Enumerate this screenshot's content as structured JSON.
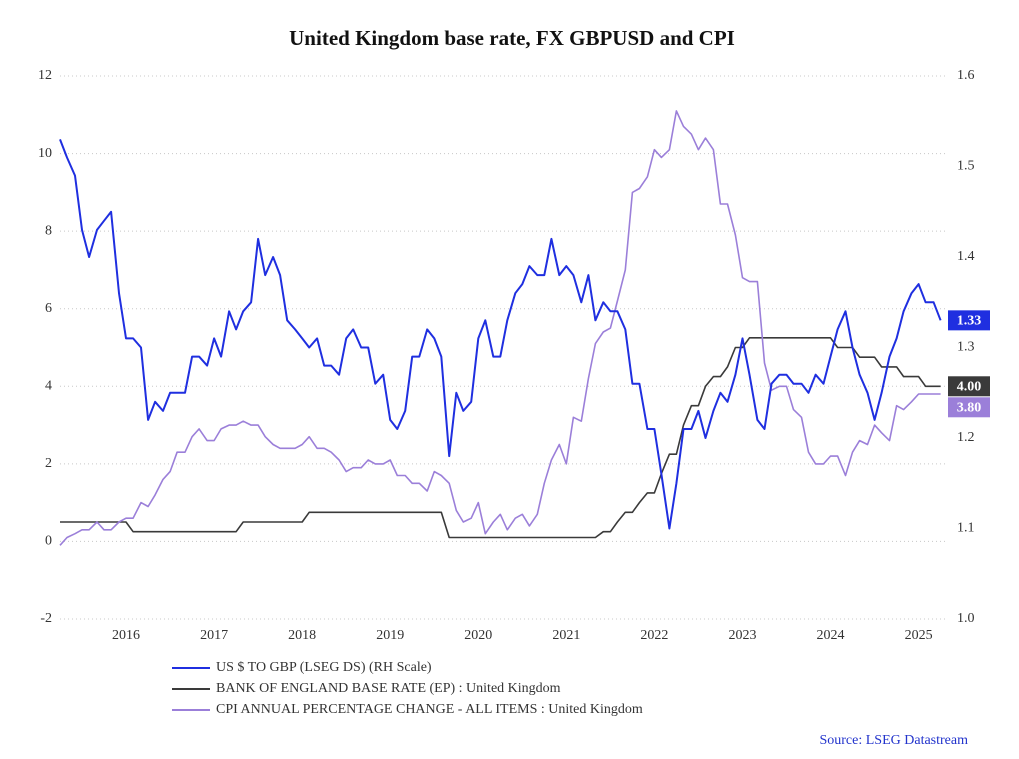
{
  "chart_data": {
    "type": "line",
    "title": "United Kingdom base rate, FX GBPUSD and CPI",
    "source": "Source: LSEG Datastream",
    "x": [
      2015.75,
      2015.83,
      2015.92,
      2016.0,
      2016.08,
      2016.17,
      2016.25,
      2016.33,
      2016.42,
      2016.5,
      2016.58,
      2016.67,
      2016.75,
      2016.83,
      2016.92,
      2017.0,
      2017.08,
      2017.17,
      2017.25,
      2017.33,
      2017.42,
      2017.5,
      2017.58,
      2017.67,
      2017.75,
      2017.83,
      2017.92,
      2018.0,
      2018.08,
      2018.17,
      2018.25,
      2018.33,
      2018.42,
      2018.5,
      2018.58,
      2018.67,
      2018.75,
      2018.83,
      2018.92,
      2019.0,
      2019.08,
      2019.17,
      2019.25,
      2019.33,
      2019.42,
      2019.5,
      2019.58,
      2019.67,
      2019.75,
      2019.83,
      2019.92,
      2020.0,
      2020.08,
      2020.17,
      2020.25,
      2020.33,
      2020.42,
      2020.5,
      2020.58,
      2020.67,
      2020.75,
      2020.83,
      2020.92,
      2021.0,
      2021.08,
      2021.17,
      2021.25,
      2021.33,
      2021.42,
      2021.5,
      2021.58,
      2021.67,
      2021.75,
      2021.83,
      2021.92,
      2022.0,
      2022.08,
      2022.17,
      2022.25,
      2022.33,
      2022.42,
      2022.5,
      2022.58,
      2022.67,
      2022.75,
      2022.83,
      2022.92,
      2023.0,
      2023.08,
      2023.17,
      2023.25,
      2023.33,
      2023.42,
      2023.5,
      2023.58,
      2023.67,
      2023.75,
      2023.83,
      2023.92,
      2024.0,
      2024.08,
      2024.17,
      2024.25,
      2024.33,
      2024.42,
      2024.5,
      2024.58,
      2024.67,
      2024.75,
      2024.83,
      2024.92,
      2025.0,
      2025.08,
      2025.17,
      2025.25,
      2025.33,
      2025.42,
      2025.5,
      2025.58,
      2025.67,
      2025.75
    ],
    "xlim": [
      2015.75,
      2025.8
    ],
    "xticks": [
      {
        "value": 2016.5,
        "label": "2016"
      },
      {
        "value": 2017.5,
        "label": "2017"
      },
      {
        "value": 2018.5,
        "label": "2018"
      },
      {
        "value": 2019.5,
        "label": "2019"
      },
      {
        "value": 2020.5,
        "label": "2020"
      },
      {
        "value": 2021.5,
        "label": "2021"
      },
      {
        "value": 2022.5,
        "label": "2022"
      },
      {
        "value": 2023.5,
        "label": "2023"
      },
      {
        "value": 2024.5,
        "label": "2024"
      },
      {
        "value": 2025.5,
        "label": "2025"
      }
    ],
    "ylim": [
      -2,
      12
    ],
    "yticks": [
      -2,
      0,
      2,
      4,
      6,
      8,
      10,
      12
    ],
    "y2lim": [
      1.0,
      1.6
    ],
    "y2ticks": [
      {
        "value": 1.0,
        "label": "1.0"
      },
      1.1,
      1.2,
      1.3,
      1.4,
      1.5,
      1.6
    ],
    "grid": true,
    "series": [
      {
        "name": "US $ TO GBP (LSEG DS) (RH Scale)",
        "color": "#1f2fe0",
        "axis": "y2",
        "end_label": "1.33",
        "values": [
          1.53,
          1.51,
          1.49,
          1.43,
          1.4,
          1.43,
          1.44,
          1.45,
          1.36,
          1.31,
          1.31,
          1.3,
          1.22,
          1.24,
          1.23,
          1.25,
          1.25,
          1.25,
          1.29,
          1.29,
          1.28,
          1.31,
          1.29,
          1.34,
          1.32,
          1.34,
          1.35,
          1.42,
          1.38,
          1.4,
          1.38,
          1.33,
          1.32,
          1.31,
          1.3,
          1.31,
          1.28,
          1.28,
          1.27,
          1.31,
          1.32,
          1.3,
          1.3,
          1.26,
          1.27,
          1.22,
          1.21,
          1.23,
          1.29,
          1.29,
          1.32,
          1.31,
          1.29,
          1.18,
          1.25,
          1.23,
          1.24,
          1.31,
          1.33,
          1.29,
          1.29,
          1.33,
          1.36,
          1.37,
          1.39,
          1.38,
          1.38,
          1.42,
          1.38,
          1.39,
          1.38,
          1.35,
          1.38,
          1.33,
          1.35,
          1.34,
          1.34,
          1.32,
          1.26,
          1.26,
          1.21,
          1.21,
          1.16,
          1.1,
          1.15,
          1.21,
          1.21,
          1.23,
          1.2,
          1.23,
          1.25,
          1.24,
          1.27,
          1.31,
          1.27,
          1.22,
          1.21,
          1.26,
          1.27,
          1.27,
          1.26,
          1.26,
          1.25,
          1.27,
          1.26,
          1.29,
          1.32,
          1.34,
          1.3,
          1.27,
          1.25,
          1.22,
          1.25,
          1.29,
          1.31,
          1.34,
          1.36,
          1.37,
          1.35,
          1.35,
          1.33
        ]
      },
      {
        "name": "BANK OF ENGLAND BASE RATE (EP) : United Kingdom",
        "color": "#3a3a3a",
        "end_label": "4.00",
        "values": [
          0.5,
          0.5,
          0.5,
          0.5,
          0.5,
          0.5,
          0.5,
          0.5,
          0.5,
          0.5,
          0.25,
          0.25,
          0.25,
          0.25,
          0.25,
          0.25,
          0.25,
          0.25,
          0.25,
          0.25,
          0.25,
          0.25,
          0.25,
          0.25,
          0.25,
          0.5,
          0.5,
          0.5,
          0.5,
          0.5,
          0.5,
          0.5,
          0.5,
          0.5,
          0.75,
          0.75,
          0.75,
          0.75,
          0.75,
          0.75,
          0.75,
          0.75,
          0.75,
          0.75,
          0.75,
          0.75,
          0.75,
          0.75,
          0.75,
          0.75,
          0.75,
          0.75,
          0.75,
          0.1,
          0.1,
          0.1,
          0.1,
          0.1,
          0.1,
          0.1,
          0.1,
          0.1,
          0.1,
          0.1,
          0.1,
          0.1,
          0.1,
          0.1,
          0.1,
          0.1,
          0.1,
          0.1,
          0.1,
          0.1,
          0.25,
          0.25,
          0.5,
          0.75,
          0.75,
          1.0,
          1.25,
          1.25,
          1.75,
          2.25,
          2.25,
          3.0,
          3.5,
          3.5,
          4.0,
          4.25,
          4.25,
          4.5,
          5.0,
          5.0,
          5.25,
          5.25,
          5.25,
          5.25,
          5.25,
          5.25,
          5.25,
          5.25,
          5.25,
          5.25,
          5.25,
          5.25,
          5.0,
          5.0,
          5.0,
          4.75,
          4.75,
          4.75,
          4.5,
          4.5,
          4.5,
          4.25,
          4.25,
          4.25,
          4.0,
          4.0,
          4.0
        ]
      },
      {
        "name": "CPI ANNUAL PERCENTAGE CHANGE - ALL ITEMS : United Kingdom",
        "color": "#9b7fd9",
        "end_label": "3.80",
        "values": [
          -0.1,
          0.1,
          0.2,
          0.3,
          0.3,
          0.5,
          0.3,
          0.3,
          0.5,
          0.6,
          0.6,
          1.0,
          0.9,
          1.2,
          1.6,
          1.8,
          2.3,
          2.3,
          2.7,
          2.9,
          2.6,
          2.6,
          2.9,
          3.0,
          3.0,
          3.1,
          3.0,
          3.0,
          2.7,
          2.5,
          2.4,
          2.4,
          2.4,
          2.5,
          2.7,
          2.4,
          2.4,
          2.3,
          2.1,
          1.8,
          1.9,
          1.9,
          2.1,
          2.0,
          2.0,
          2.1,
          1.7,
          1.7,
          1.5,
          1.5,
          1.3,
          1.8,
          1.7,
          1.5,
          0.8,
          0.5,
          0.6,
          1.0,
          0.2,
          0.5,
          0.7,
          0.3,
          0.6,
          0.7,
          0.4,
          0.7,
          1.5,
          2.1,
          2.5,
          2.0,
          3.2,
          3.1,
          4.2,
          5.1,
          5.4,
          5.5,
          6.2,
          7.0,
          9.0,
          9.1,
          9.4,
          10.1,
          9.9,
          10.1,
          11.1,
          10.7,
          10.5,
          10.1,
          10.4,
          10.1,
          8.7,
          8.7,
          7.9,
          6.8,
          6.7,
          6.7,
          4.6,
          3.9,
          4.0,
          4.0,
          3.4,
          3.2,
          2.3,
          2.0,
          2.0,
          2.2,
          2.2,
          1.7,
          2.3,
          2.6,
          2.5,
          3.0,
          2.8,
          2.6,
          3.5,
          3.4,
          3.6,
          3.8,
          3.8,
          3.8,
          3.8
        ]
      }
    ]
  }
}
